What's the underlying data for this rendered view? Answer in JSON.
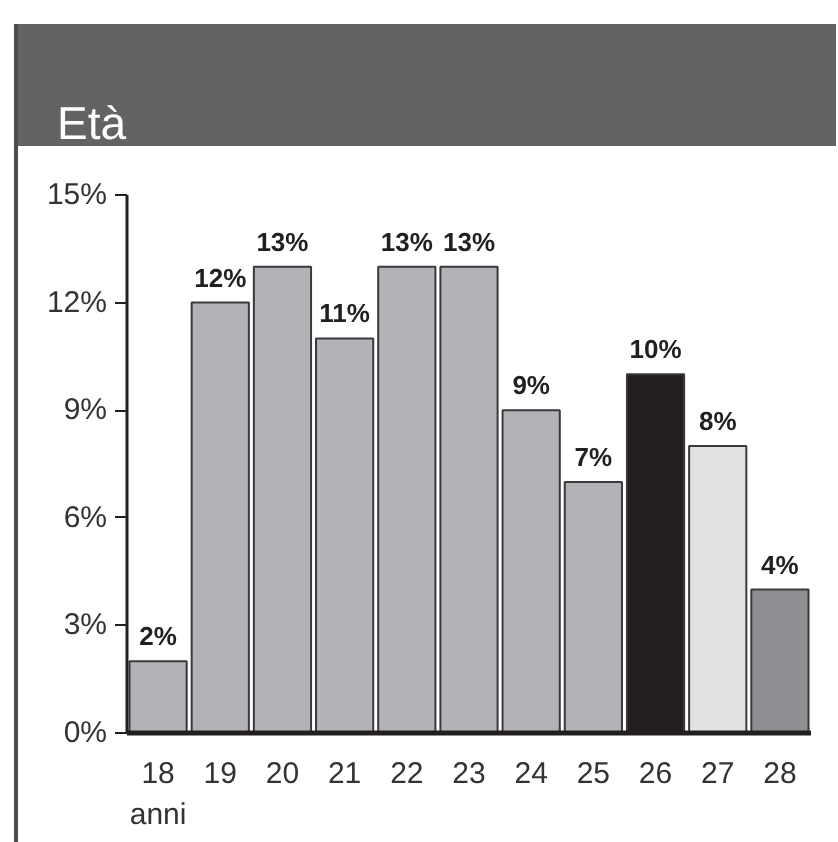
{
  "chart_data": {
    "type": "bar",
    "title": "Età",
    "categories": [
      "18\nanni",
      "19",
      "20",
      "21",
      "22",
      "23",
      "24",
      "25",
      "26",
      "27",
      "28"
    ],
    "values": [
      2,
      12,
      13,
      11,
      13,
      13,
      9,
      7,
      10,
      8,
      4
    ],
    "colors": [
      "#b2b3b7",
      "#b2b3b7",
      "#b2b3b7",
      "#b2b3b7",
      "#b2b3b7",
      "#b2b3b7",
      "#b2b3b7",
      "#b2b3b7",
      "#231f20",
      "#e1e2e4",
      "#8e8f93"
    ],
    "value_labels": [
      "2%",
      "12%",
      "13%",
      "11%",
      "13%",
      "13%",
      "9%",
      "7%",
      "10%",
      "8%",
      "4%"
    ],
    "ylim": [
      0,
      15
    ],
    "yticks": [
      {
        "value": 0,
        "label": "0%"
      },
      {
        "value": 3,
        "label": "3%"
      },
      {
        "value": 6,
        "label": "6%"
      },
      {
        "value": 9,
        "label": "9%"
      },
      {
        "value": 12,
        "label": "12%"
      },
      {
        "value": 15,
        "label": "15%"
      }
    ],
    "grid": false
  }
}
